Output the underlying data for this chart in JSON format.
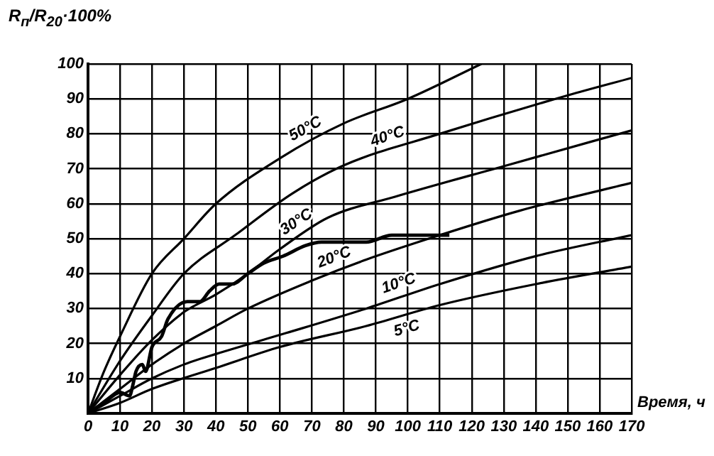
{
  "chart_data": {
    "type": "line",
    "xlabel": "Время, ч",
    "ylabel": "R$_{п}$/R$_{20}$·100%",
    "xlim": [
      0,
      170
    ],
    "ylim": [
      0,
      100
    ],
    "xticks": [
      0,
      10,
      20,
      30,
      40,
      50,
      60,
      70,
      80,
      90,
      100,
      110,
      120,
      130,
      140,
      150,
      160,
      170
    ],
    "yticks": [
      {
        "value": 0,
        "label": null
      },
      10,
      20,
      30,
      40,
      50,
      60,
      70,
      80,
      90,
      100
    ],
    "grid": true,
    "legend": false,
    "marker": "none",
    "line_style": "solid",
    "series": [
      {
        "name": "50°C",
        "color": "#000000",
        "x": [
          0,
          5,
          10,
          20,
          30,
          40,
          60,
          80,
          100,
          123
        ],
        "values": [
          0,
          12,
          22,
          40,
          50,
          60,
          73,
          83,
          90,
          100
        ]
      },
      {
        "name": "40°C",
        "color": "#000000",
        "x": [
          0,
          10,
          20,
          30,
          46,
          64,
          80,
          110,
          150,
          170
        ],
        "values": [
          0,
          15,
          28,
          40,
          51,
          63,
          71,
          80,
          91,
          96
        ]
      },
      {
        "name": "30°C",
        "color": "#000000",
        "x": [
          0,
          10,
          20,
          30,
          40,
          50,
          60,
          75,
          96,
          131,
          170
        ],
        "values": [
          0,
          11,
          21,
          29,
          34,
          40,
          47,
          56,
          62,
          71,
          81
        ]
      },
      {
        "name": "20°C",
        "color": "#000000",
        "x": [
          0,
          10,
          20,
          30,
          40,
          50,
          70,
          87,
          110,
          135,
          170
        ],
        "values": [
          0,
          7,
          14,
          20,
          25,
          30,
          38,
          44,
          51,
          58,
          66
        ]
      },
      {
        "name": "10°C",
        "color": "#000000",
        "x": [
          0,
          10,
          20,
          30,
          40,
          62,
          87,
          110,
          140,
          170
        ],
        "values": [
          0,
          5,
          10,
          14,
          17,
          23,
          30,
          37,
          45,
          51
        ]
      },
      {
        "name": "5°C",
        "color": "#000000",
        "x": [
          0,
          10,
          20,
          40,
          60,
          87,
          110,
          140,
          170
        ],
        "values": [
          0,
          3,
          7,
          13,
          19,
          25,
          31,
          37,
          42
        ]
      },
      {
        "color": "#000000",
        "x": [
          0,
          5,
          10,
          13,
          14,
          15,
          17,
          18,
          20,
          23,
          25,
          31,
          35,
          38,
          41,
          45,
          50,
          55,
          61,
          68,
          73,
          87,
          95,
          113
        ],
        "values": [
          0,
          3,
          6,
          5,
          8,
          12,
          14,
          12,
          19,
          22,
          27,
          32,
          32,
          35,
          37,
          37,
          40,
          43,
          45,
          48,
          49,
          49,
          51,
          51
        ]
      }
    ]
  }
}
